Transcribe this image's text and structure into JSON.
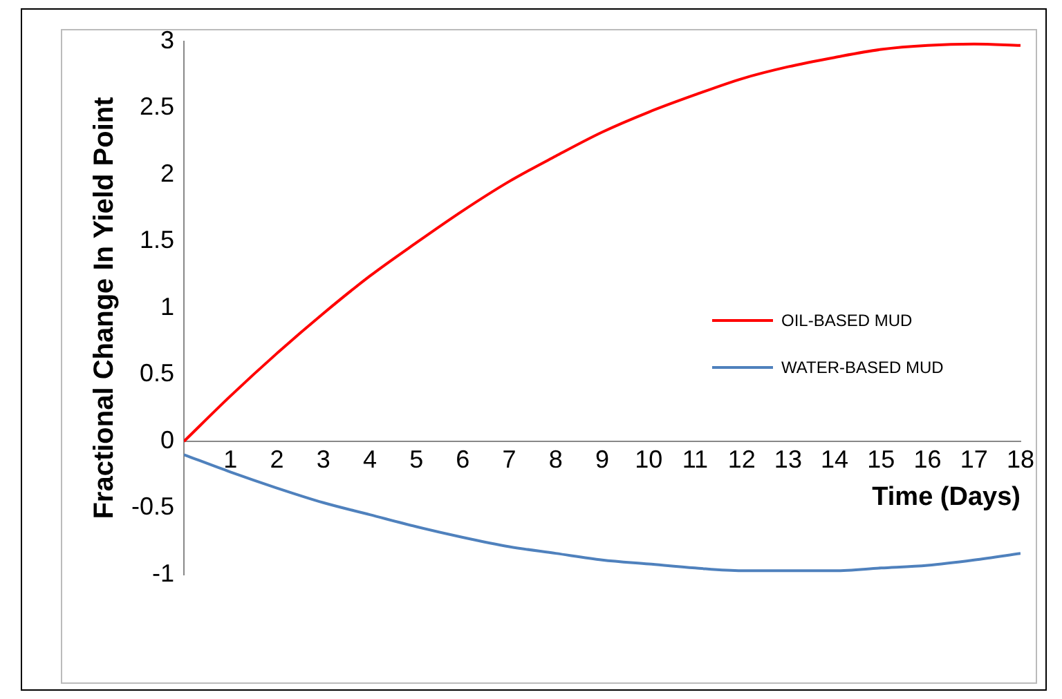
{
  "chart_data": {
    "type": "line",
    "xlabel": "Time (Days)",
    "ylabel": "Fractional Change In Yield Point",
    "x": [
      0,
      1,
      2,
      3,
      4,
      5,
      6,
      7,
      8,
      9,
      10,
      11,
      12,
      13,
      14,
      15,
      16,
      17,
      18
    ],
    "series": [
      {
        "name": "OIL-BASED MUD",
        "color": "#ff0000",
        "values": [
          0,
          0.34,
          0.66,
          0.96,
          1.24,
          1.49,
          1.73,
          1.95,
          2.14,
          2.32,
          2.47,
          2.6,
          2.72,
          2.81,
          2.88,
          2.94,
          2.97,
          2.98,
          2.97
        ]
      },
      {
        "name": "WATER-BASED MUD",
        "color": "#4f81bd",
        "values": [
          -0.1,
          -0.23,
          -0.35,
          -0.46,
          -0.55,
          -0.64,
          -0.72,
          -0.79,
          -0.84,
          -0.89,
          -0.92,
          -0.95,
          -0.97,
          -0.97,
          -0.97,
          -0.95,
          -0.93,
          -0.89,
          -0.84
        ]
      }
    ],
    "xlim": [
      0,
      18
    ],
    "xticks": [
      1,
      2,
      3,
      4,
      5,
      6,
      7,
      8,
      9,
      10,
      11,
      12,
      13,
      14,
      15,
      16,
      17,
      18
    ],
    "ylim": [
      -1,
      3
    ],
    "yticks": [
      -1,
      -0.5,
      0,
      0.5,
      1,
      1.5,
      2,
      2.5,
      3
    ],
    "grid": false,
    "legend": "right",
    "marker": "none",
    "line_style": "solid"
  }
}
